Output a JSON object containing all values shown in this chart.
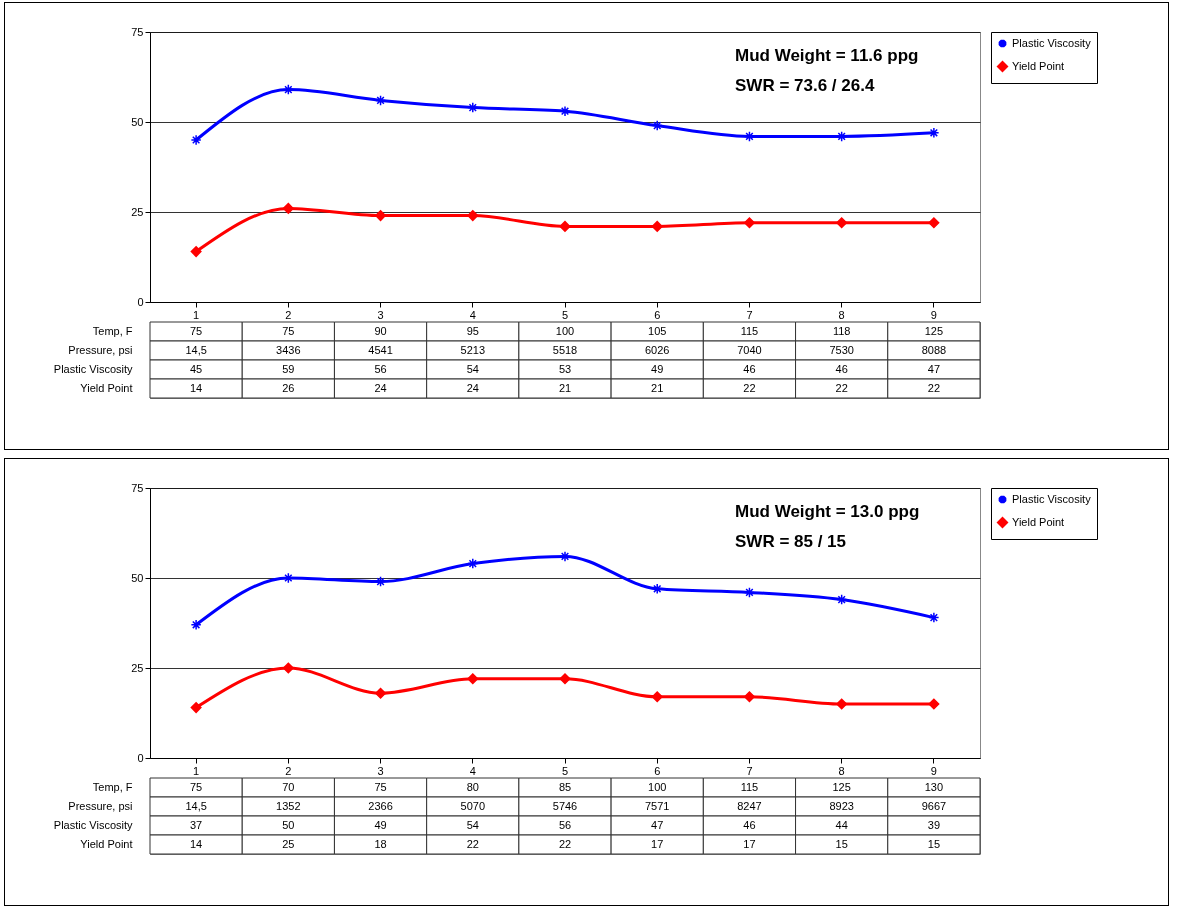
{
  "chart_data": [
    {
      "type": "line",
      "categories": [
        "1",
        "2",
        "3",
        "4",
        "5",
        "6",
        "7",
        "8",
        "9"
      ],
      "series": [
        {
          "name": "Plastic Viscosity",
          "color": "#0000ff",
          "marker": "cross",
          "values": [
            45,
            59,
            56,
            54,
            53,
            49,
            46,
            46,
            47
          ]
        },
        {
          "name": "Yield Point",
          "color": "#ff0000",
          "marker": "diamond",
          "values": [
            14,
            26,
            24,
            24,
            21,
            21,
            22,
            22,
            22
          ]
        }
      ],
      "ylim": [
        0,
        75
      ],
      "yticks": [
        0,
        25,
        50,
        75
      ],
      "grid": "y",
      "legend": "right",
      "data_labels": true,
      "annotations": [
        "Mud Weight = 11.6 ppg",
        "SWR = 73.6 / 26.4",
        "Temp, F",
        "75",
        "75",
        "90",
        "95",
        "100",
        "105",
        "115",
        "118",
        "125",
        "Pressure, psi",
        "14,5",
        "3436",
        "4541",
        "5213",
        "5518",
        "6026",
        "7040",
        "7530",
        "8088"
      ]
    },
    {
      "type": "line",
      "categories": [
        "1",
        "2",
        "3",
        "4",
        "5",
        "6",
        "7",
        "8",
        "9"
      ],
      "series": [
        {
          "name": "Plastic Viscosity",
          "color": "#0000ff",
          "marker": "cross",
          "values": [
            37,
            50,
            49,
            54,
            56,
            47,
            46,
            44,
            39
          ]
        },
        {
          "name": "Yield Point",
          "color": "#ff0000",
          "marker": "diamond",
          "values": [
            14,
            25,
            18,
            22,
            22,
            17,
            17,
            15,
            15
          ]
        }
      ],
      "ylim": [
        0,
        75
      ],
      "yticks": [
        0,
        25,
        50,
        75
      ],
      "grid": "y",
      "legend": "right",
      "data_labels": true,
      "annotations": [
        "Mud Weight = 13.0 ppg",
        "SWR = 85 / 15",
        "Temp, F",
        "75",
        "70",
        "75",
        "80",
        "85",
        "100",
        "115",
        "125",
        "130",
        "Pressure, psi",
        "14,5",
        "1352",
        "2366",
        "5070",
        "5746",
        "7571",
        "8247",
        "8923",
        "9667"
      ]
    }
  ]
}
